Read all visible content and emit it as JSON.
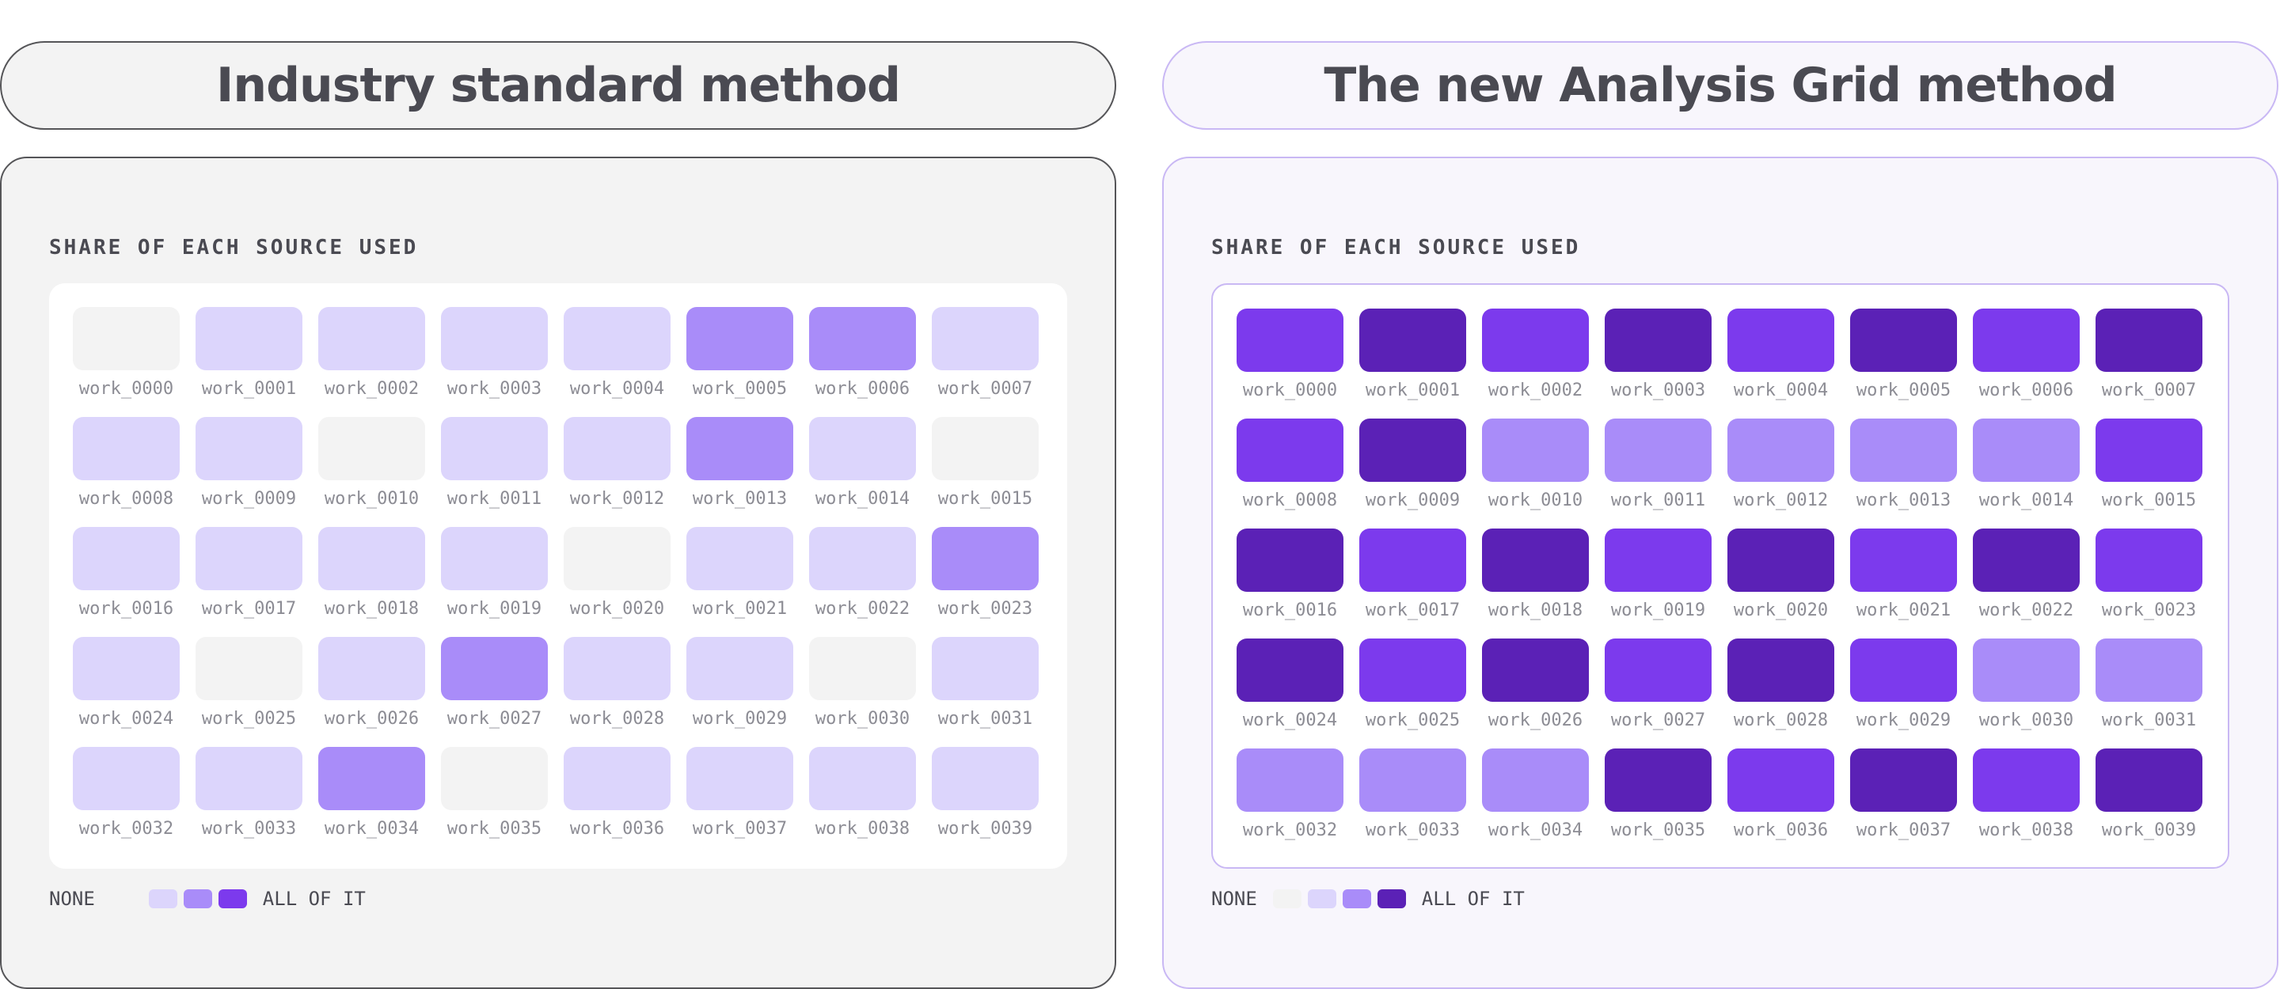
{
  "left": {
    "title": "Industry standard method",
    "section_title": "SHARE OF EACH SOURCE USED",
    "legend": {
      "none_label": "NONE",
      "all_label": "ALL OF IT",
      "levels": [
        1,
        2,
        3
      ]
    },
    "cells": [
      {
        "label": "work_0000",
        "level": 0
      },
      {
        "label": "work_0001",
        "level": 1
      },
      {
        "label": "work_0002",
        "level": 1
      },
      {
        "label": "work_0003",
        "level": 1
      },
      {
        "label": "work_0004",
        "level": 1
      },
      {
        "label": "work_0005",
        "level": 2
      },
      {
        "label": "work_0006",
        "level": 2
      },
      {
        "label": "work_0007",
        "level": 1
      },
      {
        "label": "work_0008",
        "level": 1
      },
      {
        "label": "work_0009",
        "level": 1
      },
      {
        "label": "work_0010",
        "level": 0
      },
      {
        "label": "work_0011",
        "level": 1
      },
      {
        "label": "work_0012",
        "level": 1
      },
      {
        "label": "work_0013",
        "level": 2
      },
      {
        "label": "work_0014",
        "level": 1
      },
      {
        "label": "work_0015",
        "level": 0
      },
      {
        "label": "work_0016",
        "level": 1
      },
      {
        "label": "work_0017",
        "level": 1
      },
      {
        "label": "work_0018",
        "level": 1
      },
      {
        "label": "work_0019",
        "level": 1
      },
      {
        "label": "work_0020",
        "level": 0
      },
      {
        "label": "work_0021",
        "level": 1
      },
      {
        "label": "work_0022",
        "level": 1
      },
      {
        "label": "work_0023",
        "level": 2
      },
      {
        "label": "work_0024",
        "level": 1
      },
      {
        "label": "work_0025",
        "level": 0
      },
      {
        "label": "work_0026",
        "level": 1
      },
      {
        "label": "work_0027",
        "level": 2
      },
      {
        "label": "work_0028",
        "level": 1
      },
      {
        "label": "work_0029",
        "level": 1
      },
      {
        "label": "work_0030",
        "level": 0
      },
      {
        "label": "work_0031",
        "level": 1
      },
      {
        "label": "work_0032",
        "level": 1
      },
      {
        "label": "work_0033",
        "level": 1
      },
      {
        "label": "work_0034",
        "level": 2
      },
      {
        "label": "work_0035",
        "level": 0
      },
      {
        "label": "work_0036",
        "level": 1
      },
      {
        "label": "work_0037",
        "level": 1
      },
      {
        "label": "work_0038",
        "level": 1
      },
      {
        "label": "work_0039",
        "level": 1
      }
    ]
  },
  "right": {
    "title": "The new Analysis Grid method",
    "section_title": "SHARE OF EACH SOURCE USED",
    "legend": {
      "none_label": "NONE",
      "all_label": "ALL OF IT",
      "levels": [
        0,
        1,
        2,
        4
      ]
    },
    "cells": [
      {
        "label": "work_0000",
        "level": 3
      },
      {
        "label": "work_0001",
        "level": 4
      },
      {
        "label": "work_0002",
        "level": 3
      },
      {
        "label": "work_0003",
        "level": 4
      },
      {
        "label": "work_0004",
        "level": 3
      },
      {
        "label": "work_0005",
        "level": 4
      },
      {
        "label": "work_0006",
        "level": 3
      },
      {
        "label": "work_0007",
        "level": 4
      },
      {
        "label": "work_0008",
        "level": 3
      },
      {
        "label": "work_0009",
        "level": 4
      },
      {
        "label": "work_0010",
        "level": 2
      },
      {
        "label": "work_0011",
        "level": 2
      },
      {
        "label": "work_0012",
        "level": 2
      },
      {
        "label": "work_0013",
        "level": 2
      },
      {
        "label": "work_0014",
        "level": 2
      },
      {
        "label": "work_0015",
        "level": 3
      },
      {
        "label": "work_0016",
        "level": 4
      },
      {
        "label": "work_0017",
        "level": 3
      },
      {
        "label": "work_0018",
        "level": 4
      },
      {
        "label": "work_0019",
        "level": 3
      },
      {
        "label": "work_0020",
        "level": 4
      },
      {
        "label": "work_0021",
        "level": 3
      },
      {
        "label": "work_0022",
        "level": 4
      },
      {
        "label": "work_0023",
        "level": 3
      },
      {
        "label": "work_0024",
        "level": 4
      },
      {
        "label": "work_0025",
        "level": 3
      },
      {
        "label": "work_0026",
        "level": 4
      },
      {
        "label": "work_0027",
        "level": 3
      },
      {
        "label": "work_0028",
        "level": 4
      },
      {
        "label": "work_0029",
        "level": 3
      },
      {
        "label": "work_0030",
        "level": 2
      },
      {
        "label": "work_0031",
        "level": 2
      },
      {
        "label": "work_0032",
        "level": 2
      },
      {
        "label": "work_0033",
        "level": 2
      },
      {
        "label": "work_0034",
        "level": 2
      },
      {
        "label": "work_0035",
        "level": 4
      },
      {
        "label": "work_0036",
        "level": 3
      },
      {
        "label": "work_0037",
        "level": 4
      },
      {
        "label": "work_0038",
        "level": 3
      },
      {
        "label": "work_0039",
        "level": 4
      }
    ]
  },
  "colors": {
    "levels": [
      "#f3f3f3",
      "#dcd5fc",
      "#a98cf9",
      "#7c3aed",
      "#5b21b6"
    ]
  }
}
